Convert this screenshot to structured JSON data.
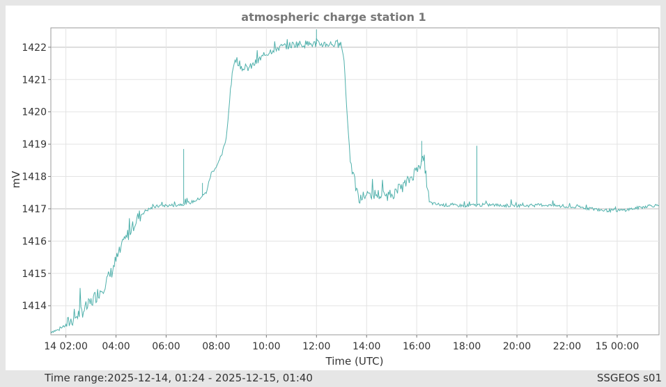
{
  "chart_data": {
    "type": "line",
    "title": "atmospheric charge station 1",
    "xlabel": "Time (UTC)",
    "ylabel": "mV",
    "x_tick_labels": [
      "14 02:00",
      "04:00",
      "06:00",
      "08:00",
      "10:00",
      "12:00",
      "14:00",
      "16:00",
      "18:00",
      "20:00",
      "22:00",
      "15 00:00"
    ],
    "x_tick_hours": [
      2,
      4,
      6,
      8,
      10,
      12,
      14,
      16,
      18,
      20,
      22,
      24
    ],
    "y_ticks": [
      1414,
      1415,
      1416,
      1417,
      1418,
      1419,
      1420,
      1421,
      1422
    ],
    "xlim_hours": [
      1.4,
      25.67
    ],
    "ylim": [
      1413.1,
      1422.6
    ],
    "grid": true,
    "color": "#4fb0ab",
    "series": [
      {
        "x_hours": [
          1.4,
          1.7,
          2.0,
          2.3,
          2.6,
          2.9,
          3.2,
          3.5,
          3.8,
          4.0,
          4.3,
          4.6,
          4.9,
          5.2,
          5.5,
          5.8,
          6.1,
          6.4,
          6.7,
          7.0,
          7.3,
          7.6,
          7.8,
          8.0,
          8.2,
          8.4,
          8.6,
          8.75,
          8.9,
          9.1,
          9.4,
          9.7,
          10.0,
          10.3,
          10.6,
          10.9,
          11.2,
          11.5,
          11.8,
          12.1,
          12.4,
          12.7,
          13.0,
          13.1,
          13.2,
          13.35,
          13.5,
          13.7,
          13.9,
          14.1,
          14.4,
          14.7,
          15.0,
          15.3,
          15.6,
          15.9,
          16.1,
          16.3,
          16.4,
          16.5,
          16.7,
          17.0,
          17.5,
          18.0,
          18.5,
          19.0,
          19.5,
          20.0,
          20.5,
          21.0,
          21.5,
          22.0,
          22.5,
          23.0,
          23.5,
          23.9,
          24.2,
          24.6,
          25.0,
          25.3,
          25.67
        ],
        "values": [
          1413.2,
          1413.25,
          1413.4,
          1413.6,
          1413.8,
          1414.0,
          1414.3,
          1414.6,
          1415.0,
          1415.4,
          1415.9,
          1416.4,
          1416.75,
          1416.95,
          1417.05,
          1417.1,
          1417.1,
          1417.12,
          1417.15,
          1417.2,
          1417.3,
          1417.5,
          1418.1,
          1418.3,
          1418.6,
          1419.2,
          1420.9,
          1421.7,
          1421.5,
          1421.3,
          1421.4,
          1421.6,
          1421.8,
          1421.95,
          1422.0,
          1422.05,
          1422.1,
          1422.1,
          1422.1,
          1422.1,
          1422.1,
          1422.1,
          1422.05,
          1421.6,
          1420.2,
          1418.5,
          1417.9,
          1417.25,
          1417.4,
          1417.45,
          1417.45,
          1417.4,
          1417.45,
          1417.6,
          1417.8,
          1418.1,
          1418.4,
          1418.5,
          1417.8,
          1417.2,
          1417.15,
          1417.12,
          1417.1,
          1417.1,
          1417.12,
          1417.12,
          1417.1,
          1417.1,
          1417.1,
          1417.12,
          1417.1,
          1417.05,
          1417.05,
          1417.0,
          1416.95,
          1416.95,
          1416.95,
          1417.0,
          1417.05,
          1417.1,
          1417.1
        ],
        "spikes": [
          {
            "x_hours": 6.7,
            "y": 1418.85
          },
          {
            "x_hours": 7.45,
            "y": 1417.8
          },
          {
            "x_hours": 12.0,
            "y": 1422.55
          },
          {
            "x_hours": 16.2,
            "y": 1419.1
          },
          {
            "x_hours": 18.4,
            "y": 1418.95
          }
        ]
      }
    ]
  },
  "footer": {
    "time_range_label": "Time range:",
    "time_range_value": "2025-12-14, 01:24 - 2025-12-15, 01:40",
    "station": "SSGEOS s01"
  }
}
